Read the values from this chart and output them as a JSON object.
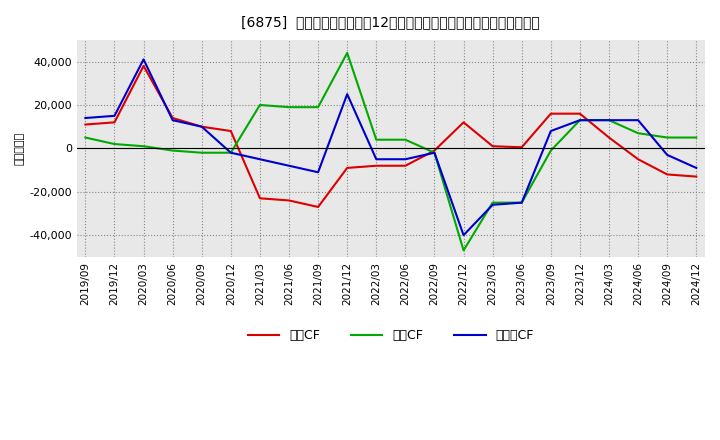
{
  "title": "[6875]  キャッシュフローの12か月移動合計の対前年同期増減額の推移",
  "ylabel": "（百万円）",
  "background_color": "#ffffff",
  "plot_bg_color": "#e8e8e8",
  "grid_color": "#aaaaaa",
  "x_labels": [
    "2019/09",
    "2019/12",
    "2020/03",
    "2020/06",
    "2020/09",
    "2020/12",
    "2021/03",
    "2021/06",
    "2021/09",
    "2021/12",
    "2022/03",
    "2022/06",
    "2022/09",
    "2022/12",
    "2023/03",
    "2023/06",
    "2023/09",
    "2023/12",
    "2024/03",
    "2024/06",
    "2024/09",
    "2024/12"
  ],
  "operating_cf": [
    11000,
    12000,
    38000,
    14000,
    10000,
    8000,
    -23000,
    -24000,
    -27000,
    -9000,
    -8000,
    -8000,
    -1000,
    12000,
    1000,
    500,
    16000,
    16000,
    5000,
    -5000,
    -12000,
    -13000
  ],
  "investing_cf": [
    5000,
    2000,
    1000,
    -1000,
    -2000,
    -2000,
    20000,
    19000,
    19000,
    44000,
    4000,
    4000,
    -2000,
    -47000,
    -25000,
    -25000,
    -1000,
    13000,
    13000,
    7000,
    5000,
    5000
  ],
  "free_cf": [
    14000,
    15000,
    41000,
    13000,
    10000,
    -2000,
    -5000,
    -8000,
    -11000,
    25000,
    -5000,
    -5000,
    -2000,
    -40000,
    -26000,
    -25000,
    8000,
    13000,
    13000,
    13000,
    -3000,
    -9000
  ],
  "operating_color": "#dd0000",
  "investing_color": "#00aa00",
  "free_color": "#0000cc",
  "ylim": [
    -50000,
    50000
  ],
  "yticks": [
    -40000,
    -20000,
    0,
    20000,
    40000
  ],
  "legend_labels": [
    "営業CF",
    "投資CF",
    "フリーCF"
  ]
}
